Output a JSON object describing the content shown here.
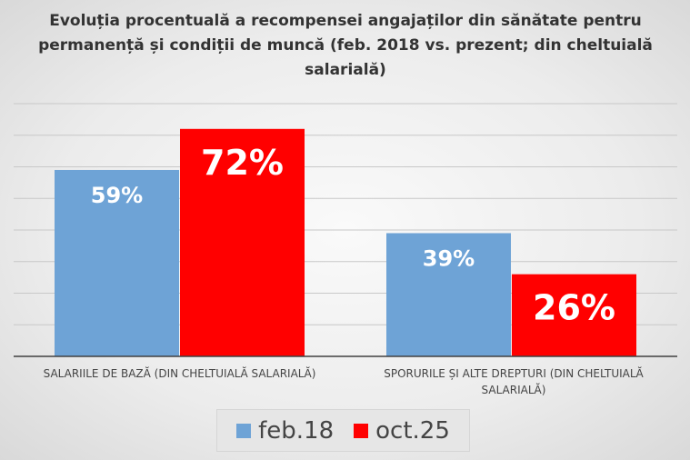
{
  "chart_data": {
    "type": "bar",
    "title": "Evoluția procentuală a recompensei angajaților din sănătate pentru permanență și condiții de muncă (feb. 2018 vs. prezent; din cheltuială salarială)",
    "categories": [
      "SALARIILE DE BAZĂ (DIN CHELTUIALĂ SALARIALĂ)",
      "SPORURILE ȘI ALTE DREPTURI (DIN CHELTUIALĂ SALARIALĂ)"
    ],
    "series": [
      {
        "name": "feb.18",
        "values": [
          59,
          39
        ],
        "labels": [
          "59%",
          "39%"
        ],
        "color": "#6ea3d6"
      },
      {
        "name": "oct.25",
        "values": [
          72,
          26
        ],
        "labels": [
          "72%",
          "26%"
        ],
        "color": "#ff0000"
      }
    ],
    "ylim": [
      0,
      80
    ],
    "grid_step": 10,
    "grid": true,
    "legend_position": "bottom"
  }
}
